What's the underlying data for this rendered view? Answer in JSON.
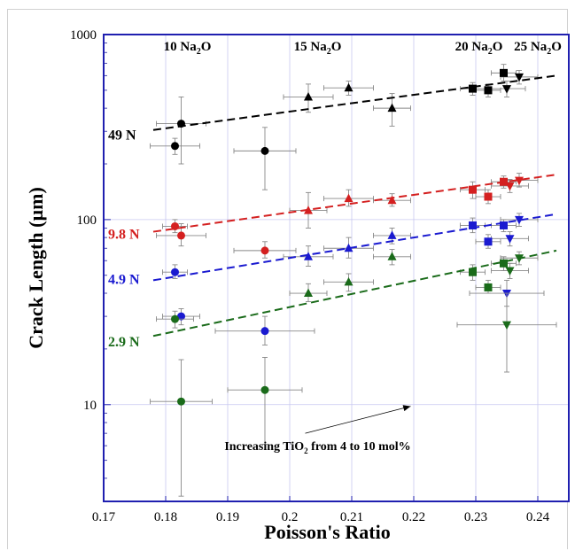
{
  "chart_data": {
    "type": "scatter",
    "xlabel": "Poisson's Ratio",
    "ylabel": "Crack Length (µm)",
    "xlim": [
      0.17,
      0.245
    ],
    "ylim": [
      3,
      1000
    ],
    "yscale": "log",
    "x_ticks": [
      "0.17",
      "0.18",
      "0.19",
      "0.2",
      "0.21",
      "0.22",
      "0.23",
      "0.24"
    ],
    "y_ticks": [
      "10",
      "100",
      "1000"
    ],
    "grid": true,
    "composition_labels": [
      {
        "text": "10 Na",
        "sub": "2",
        "tail": "O",
        "x": 0.1835
      },
      {
        "text": "15 Na",
        "sub": "2",
        "tail": "O",
        "x": 0.2045
      },
      {
        "text": "20 Na",
        "sub": "2",
        "tail": "O",
        "x": 0.2305
      },
      {
        "text": "25 Na",
        "sub": "2",
        "tail": "O",
        "x": 0.24
      }
    ],
    "load_labels": [
      {
        "text": "49 N",
        "color": "#000000",
        "y": 290
      },
      {
        "text": "9.8 N",
        "color": "#d42020",
        "y": 84
      },
      {
        "text": "4.9 N",
        "color": "#1a1ad0",
        "y": 48
      },
      {
        "text": "2.9 N",
        "color": "#1a6b1a",
        "y": 22
      }
    ],
    "annotation": {
      "pre": "Increasing TiO",
      "sub": "2",
      "post": " from 4 to 10 mol%",
      "text_x": 0.2045,
      "text_y": 5.7,
      "arrow_from": [
        0.2025,
        7.0
      ],
      "arrow_to": [
        0.2195,
        9.8
      ]
    },
    "series": [
      {
        "name": "49 N",
        "color": "#000000",
        "trend": [
          [
            0.178,
            305
          ],
          [
            0.243,
            600
          ]
        ],
        "points": [
          {
            "x": 0.1815,
            "y": 250,
            "m": "circle",
            "xe": 0.004,
            "ylo": 225,
            "yhi": 275
          },
          {
            "x": 0.1825,
            "y": 330,
            "m": "circle",
            "xe": 0.004,
            "ylo": 200,
            "yhi": 460
          },
          {
            "x": 0.196,
            "y": 235,
            "m": "circle",
            "xe": 0.005,
            "ylo": 145,
            "yhi": 315
          },
          {
            "x": 0.203,
            "y": 460,
            "m": "triangle",
            "xe": 0.004,
            "ylo": 380,
            "yhi": 540
          },
          {
            "x": 0.2095,
            "y": 515,
            "m": "triangle",
            "xe": 0.004,
            "ylo": 470,
            "yhi": 560
          },
          {
            "x": 0.2165,
            "y": 400,
            "m": "triangle",
            "xe": 0.003,
            "ylo": 320,
            "yhi": 480
          },
          {
            "x": 0.2295,
            "y": 510,
            "m": "square",
            "xe": 0.002,
            "ylo": 470,
            "yhi": 550
          },
          {
            "x": 0.232,
            "y": 500,
            "m": "square",
            "xe": 0.002,
            "ylo": 460,
            "yhi": 540
          },
          {
            "x": 0.2345,
            "y": 620,
            "m": "square",
            "xe": 0.002,
            "ylo": 560,
            "yhi": 690
          },
          {
            "x": 0.235,
            "y": 510,
            "m": "triangle-down",
            "xe": 0.003,
            "ylo": 460,
            "yhi": 560
          },
          {
            "x": 0.237,
            "y": 590,
            "m": "triangle-down",
            "xe": 0.003,
            "ylo": 540,
            "yhi": 640
          }
        ]
      },
      {
        "name": "9.8 N",
        "color": "#d42020",
        "trend": [
          [
            0.178,
            86
          ],
          [
            0.243,
            175
          ]
        ],
        "points": [
          {
            "x": 0.1815,
            "y": 92,
            "m": "circle",
            "xe": 0.002,
            "ylo": 85,
            "yhi": 100
          },
          {
            "x": 0.1825,
            "y": 82,
            "m": "circle",
            "xe": 0.004,
            "ylo": 72,
            "yhi": 95
          },
          {
            "x": 0.196,
            "y": 68,
            "m": "circle",
            "xe": 0.005,
            "ylo": 62,
            "yhi": 76
          },
          {
            "x": 0.203,
            "y": 112,
            "m": "triangle",
            "xe": 0.003,
            "ylo": 90,
            "yhi": 140
          },
          {
            "x": 0.2095,
            "y": 130,
            "m": "triangle",
            "xe": 0.004,
            "ylo": 118,
            "yhi": 145
          },
          {
            "x": 0.2165,
            "y": 127,
            "m": "triangle",
            "xe": 0.003,
            "ylo": 118,
            "yhi": 138
          },
          {
            "x": 0.2295,
            "y": 145,
            "m": "square",
            "xe": 0.002,
            "ylo": 130,
            "yhi": 160
          },
          {
            "x": 0.232,
            "y": 133,
            "m": "square",
            "xe": 0.002,
            "ylo": 122,
            "yhi": 145
          },
          {
            "x": 0.2345,
            "y": 160,
            "m": "square",
            "xe": 0.002,
            "ylo": 148,
            "yhi": 172
          },
          {
            "x": 0.2355,
            "y": 152,
            "m": "triangle-down",
            "xe": 0.003,
            "ylo": 140,
            "yhi": 165
          },
          {
            "x": 0.237,
            "y": 163,
            "m": "triangle-down",
            "xe": 0.003,
            "ylo": 150,
            "yhi": 178
          }
        ]
      },
      {
        "name": "4.9 N",
        "color": "#1a1ad0",
        "trend": [
          [
            0.178,
            47
          ],
          [
            0.243,
            107
          ]
        ],
        "points": [
          {
            "x": 0.1815,
            "y": 52,
            "m": "circle",
            "xe": 0.002,
            "ylo": 48,
            "yhi": 57
          },
          {
            "x": 0.1825,
            "y": 30,
            "m": "circle",
            "xe": 0.003,
            "ylo": 27,
            "yhi": 33
          },
          {
            "x": 0.196,
            "y": 25,
            "m": "circle",
            "xe": 0.008,
            "ylo": 21,
            "yhi": 30
          },
          {
            "x": 0.203,
            "y": 63,
            "m": "triangle",
            "xe": 0.004,
            "ylo": 56,
            "yhi": 72
          },
          {
            "x": 0.2095,
            "y": 70,
            "m": "triangle",
            "xe": 0.004,
            "ylo": 62,
            "yhi": 80
          },
          {
            "x": 0.2165,
            "y": 82,
            "m": "triangle",
            "xe": 0.003,
            "ylo": 74,
            "yhi": 90
          },
          {
            "x": 0.2295,
            "y": 93,
            "m": "square",
            "xe": 0.002,
            "ylo": 85,
            "yhi": 102
          },
          {
            "x": 0.232,
            "y": 76,
            "m": "square",
            "xe": 0.002,
            "ylo": 70,
            "yhi": 83
          },
          {
            "x": 0.2345,
            "y": 93,
            "m": "square",
            "xe": 0.002,
            "ylo": 86,
            "yhi": 100
          },
          {
            "x": 0.235,
            "y": 40,
            "m": "triangle-down",
            "xe": 0.006,
            "ylo": 34,
            "yhi": 47
          },
          {
            "x": 0.2355,
            "y": 79,
            "m": "triangle-down",
            "xe": 0.003,
            "ylo": 72,
            "yhi": 86
          },
          {
            "x": 0.237,
            "y": 100,
            "m": "triangle-down",
            "xe": 0.003,
            "ylo": 92,
            "yhi": 108
          }
        ]
      },
      {
        "name": "2.9 N",
        "color": "#1a6b1a",
        "trend": [
          [
            0.178,
            23.5
          ],
          [
            0.243,
            68
          ]
        ],
        "points": [
          {
            "x": 0.1815,
            "y": 29,
            "m": "circle",
            "xe": 0.003,
            "ylo": 26,
            "yhi": 32
          },
          {
            "x": 0.1825,
            "y": 10.4,
            "m": "circle",
            "xe": 0.005,
            "ylo": 3.2,
            "yhi": 17.5
          },
          {
            "x": 0.196,
            "y": 12,
            "m": "circle",
            "xe": 0.006,
            "ylo": 6.1,
            "yhi": 18
          },
          {
            "x": 0.203,
            "y": 40,
            "m": "triangle",
            "xe": 0.003,
            "ylo": 36,
            "yhi": 45
          },
          {
            "x": 0.2095,
            "y": 46,
            "m": "triangle",
            "xe": 0.004,
            "ylo": 41,
            "yhi": 51
          },
          {
            "x": 0.2165,
            "y": 63,
            "m": "triangle",
            "xe": 0.003,
            "ylo": 57,
            "yhi": 69
          },
          {
            "x": 0.2295,
            "y": 52,
            "m": "square",
            "xe": 0.002,
            "ylo": 47,
            "yhi": 57
          },
          {
            "x": 0.232,
            "y": 43,
            "m": "square",
            "xe": 0.002,
            "ylo": 40,
            "yhi": 47
          },
          {
            "x": 0.2345,
            "y": 58,
            "m": "square",
            "xe": 0.002,
            "ylo": 53,
            "yhi": 63
          },
          {
            "x": 0.235,
            "y": 27,
            "m": "triangle-down",
            "xe": 0.008,
            "ylo": 15,
            "yhi": 40
          },
          {
            "x": 0.2355,
            "y": 53,
            "m": "triangle-down",
            "xe": 0.003,
            "ylo": 48,
            "yhi": 58
          },
          {
            "x": 0.237,
            "y": 62,
            "m": "triangle-down",
            "xe": 0.003,
            "ylo": 57,
            "yhi": 67
          }
        ]
      }
    ]
  }
}
